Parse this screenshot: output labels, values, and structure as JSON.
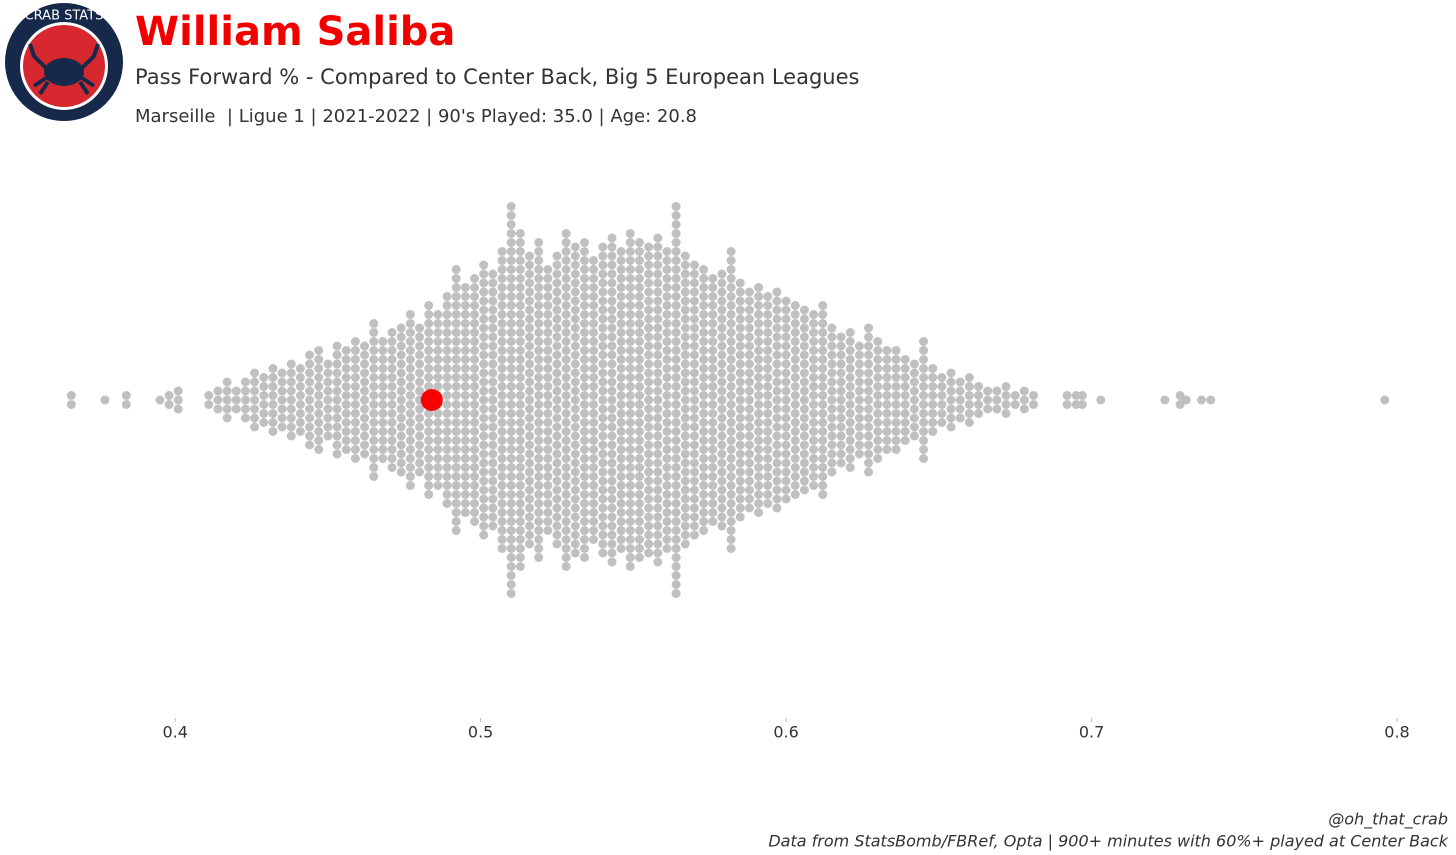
{
  "logo": {
    "text": "CRAB STATS"
  },
  "chart_data": {
    "type": "beeswarm",
    "title": "William Saliba",
    "subtitle": "Pass Forward % - Compared to Center Back, Big 5 European Leagues",
    "info": "Marseille  | Ligue 1 | 2021-2022 | 90's Played: 35.0 | Age: 20.8",
    "credit": "@oh_that_crab",
    "source": "Data from StatsBomb/FBRef, Opta | 900+ minutes with 60%+ played at Center Back",
    "color": "#c0c0c0",
    "x": [
      0.366,
      0.377,
      0.384,
      0.395,
      0.398,
      0.401,
      0.411,
      0.414,
      0.417,
      0.42,
      0.423,
      0.426,
      0.429,
      0.432,
      0.435,
      0.438,
      0.441,
      0.444,
      0.447,
      0.45,
      0.453,
      0.456,
      0.459,
      0.462,
      0.465,
      0.468,
      0.471,
      0.474,
      0.477,
      0.48,
      0.483,
      0.486,
      0.489,
      0.492,
      0.495,
      0.498,
      0.501,
      0.504,
      0.507,
      0.51,
      0.513,
      0.516,
      0.519,
      0.522,
      0.525,
      0.528,
      0.531,
      0.534,
      0.537,
      0.54,
      0.543,
      0.546,
      0.549,
      0.552,
      0.555,
      0.558,
      0.561,
      0.564,
      0.567,
      0.57,
      0.573,
      0.576,
      0.579,
      0.582,
      0.585,
      0.588,
      0.591,
      0.594,
      0.597,
      0.6,
      0.603,
      0.606,
      0.609,
      0.612,
      0.615,
      0.618,
      0.621,
      0.624,
      0.627,
      0.63,
      0.633,
      0.636,
      0.639,
      0.642,
      0.645,
      0.648,
      0.651,
      0.654,
      0.657,
      0.66,
      0.663,
      0.666,
      0.669,
      0.672,
      0.675,
      0.678,
      0.681,
      0.692,
      0.695,
      0.697,
      0.703,
      0.724,
      0.729,
      0.731,
      0.736,
      0.739,
      0.796
    ],
    "counts": [
      2,
      1,
      2,
      1,
      2,
      3,
      2,
      3,
      5,
      3,
      5,
      7,
      6,
      8,
      7,
      9,
      8,
      11,
      12,
      9,
      13,
      12,
      14,
      13,
      18,
      14,
      16,
      17,
      20,
      17,
      22,
      20,
      24,
      30,
      26,
      28,
      31,
      29,
      34,
      44,
      38,
      33,
      36,
      30,
      33,
      38,
      35,
      36,
      32,
      35,
      37,
      34,
      38,
      36,
      35,
      37,
      34,
      44,
      33,
      31,
      30,
      28,
      29,
      34,
      27,
      25,
      26,
      24,
      25,
      23,
      22,
      21,
      20,
      22,
      17,
      15,
      16,
      13,
      17,
      14,
      12,
      12,
      10,
      9,
      14,
      8,
      6,
      7,
      5,
      6,
      4,
      3,
      3,
      4,
      2,
      3,
      2,
      2,
      2,
      2,
      1,
      1,
      2,
      1,
      1,
      1,
      1
    ],
    "highlight": {
      "value": 0.484,
      "color": "#ff0000"
    },
    "xlim": [
      0.36,
      0.8
    ],
    "xticks": [
      0.4,
      0.5,
      0.6,
      0.7,
      0.8
    ]
  }
}
